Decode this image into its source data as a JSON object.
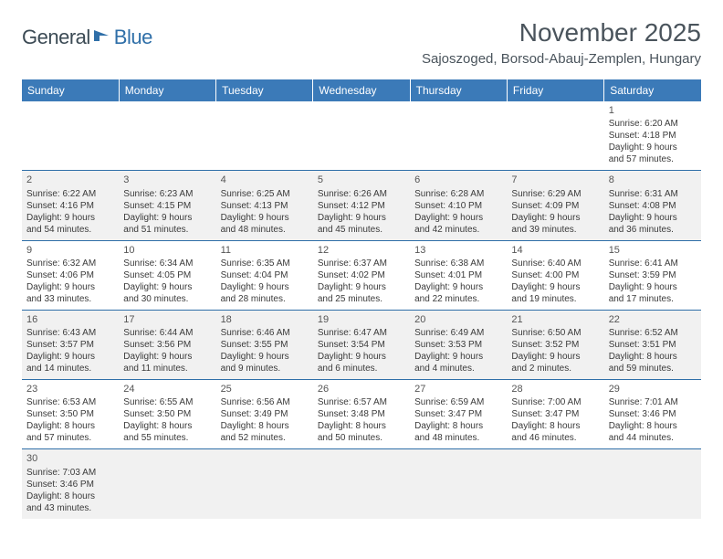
{
  "logo": {
    "text_dark": "General",
    "text_blue": "Blue",
    "accent_color": "#2f6fa8"
  },
  "header": {
    "title": "November 2025",
    "location": "Sajoszoged, Borsod-Abauj-Zemplen, Hungary"
  },
  "colors": {
    "header_bg": "#3b7ab8",
    "row_alt": "#f1f1f1",
    "row_border": "#2f6fa8",
    "text_muted": "#4a545c"
  },
  "weekdays": [
    "Sunday",
    "Monday",
    "Tuesday",
    "Wednesday",
    "Thursday",
    "Friday",
    "Saturday"
  ],
  "weeks": [
    [
      null,
      null,
      null,
      null,
      null,
      null,
      {
        "n": "1",
        "sr": "Sunrise: 6:20 AM",
        "ss": "Sunset: 4:18 PM",
        "d1": "Daylight: 9 hours",
        "d2": "and 57 minutes."
      }
    ],
    [
      {
        "n": "2",
        "sr": "Sunrise: 6:22 AM",
        "ss": "Sunset: 4:16 PM",
        "d1": "Daylight: 9 hours",
        "d2": "and 54 minutes."
      },
      {
        "n": "3",
        "sr": "Sunrise: 6:23 AM",
        "ss": "Sunset: 4:15 PM",
        "d1": "Daylight: 9 hours",
        "d2": "and 51 minutes."
      },
      {
        "n": "4",
        "sr": "Sunrise: 6:25 AM",
        "ss": "Sunset: 4:13 PM",
        "d1": "Daylight: 9 hours",
        "d2": "and 48 minutes."
      },
      {
        "n": "5",
        "sr": "Sunrise: 6:26 AM",
        "ss": "Sunset: 4:12 PM",
        "d1": "Daylight: 9 hours",
        "d2": "and 45 minutes."
      },
      {
        "n": "6",
        "sr": "Sunrise: 6:28 AM",
        "ss": "Sunset: 4:10 PM",
        "d1": "Daylight: 9 hours",
        "d2": "and 42 minutes."
      },
      {
        "n": "7",
        "sr": "Sunrise: 6:29 AM",
        "ss": "Sunset: 4:09 PM",
        "d1": "Daylight: 9 hours",
        "d2": "and 39 minutes."
      },
      {
        "n": "8",
        "sr": "Sunrise: 6:31 AM",
        "ss": "Sunset: 4:08 PM",
        "d1": "Daylight: 9 hours",
        "d2": "and 36 minutes."
      }
    ],
    [
      {
        "n": "9",
        "sr": "Sunrise: 6:32 AM",
        "ss": "Sunset: 4:06 PM",
        "d1": "Daylight: 9 hours",
        "d2": "and 33 minutes."
      },
      {
        "n": "10",
        "sr": "Sunrise: 6:34 AM",
        "ss": "Sunset: 4:05 PM",
        "d1": "Daylight: 9 hours",
        "d2": "and 30 minutes."
      },
      {
        "n": "11",
        "sr": "Sunrise: 6:35 AM",
        "ss": "Sunset: 4:04 PM",
        "d1": "Daylight: 9 hours",
        "d2": "and 28 minutes."
      },
      {
        "n": "12",
        "sr": "Sunrise: 6:37 AM",
        "ss": "Sunset: 4:02 PM",
        "d1": "Daylight: 9 hours",
        "d2": "and 25 minutes."
      },
      {
        "n": "13",
        "sr": "Sunrise: 6:38 AM",
        "ss": "Sunset: 4:01 PM",
        "d1": "Daylight: 9 hours",
        "d2": "and 22 minutes."
      },
      {
        "n": "14",
        "sr": "Sunrise: 6:40 AM",
        "ss": "Sunset: 4:00 PM",
        "d1": "Daylight: 9 hours",
        "d2": "and 19 minutes."
      },
      {
        "n": "15",
        "sr": "Sunrise: 6:41 AM",
        "ss": "Sunset: 3:59 PM",
        "d1": "Daylight: 9 hours",
        "d2": "and 17 minutes."
      }
    ],
    [
      {
        "n": "16",
        "sr": "Sunrise: 6:43 AM",
        "ss": "Sunset: 3:57 PM",
        "d1": "Daylight: 9 hours",
        "d2": "and 14 minutes."
      },
      {
        "n": "17",
        "sr": "Sunrise: 6:44 AM",
        "ss": "Sunset: 3:56 PM",
        "d1": "Daylight: 9 hours",
        "d2": "and 11 minutes."
      },
      {
        "n": "18",
        "sr": "Sunrise: 6:46 AM",
        "ss": "Sunset: 3:55 PM",
        "d1": "Daylight: 9 hours",
        "d2": "and 9 minutes."
      },
      {
        "n": "19",
        "sr": "Sunrise: 6:47 AM",
        "ss": "Sunset: 3:54 PM",
        "d1": "Daylight: 9 hours",
        "d2": "and 6 minutes."
      },
      {
        "n": "20",
        "sr": "Sunrise: 6:49 AM",
        "ss": "Sunset: 3:53 PM",
        "d1": "Daylight: 9 hours",
        "d2": "and 4 minutes."
      },
      {
        "n": "21",
        "sr": "Sunrise: 6:50 AM",
        "ss": "Sunset: 3:52 PM",
        "d1": "Daylight: 9 hours",
        "d2": "and 2 minutes."
      },
      {
        "n": "22",
        "sr": "Sunrise: 6:52 AM",
        "ss": "Sunset: 3:51 PM",
        "d1": "Daylight: 8 hours",
        "d2": "and 59 minutes."
      }
    ],
    [
      {
        "n": "23",
        "sr": "Sunrise: 6:53 AM",
        "ss": "Sunset: 3:50 PM",
        "d1": "Daylight: 8 hours",
        "d2": "and 57 minutes."
      },
      {
        "n": "24",
        "sr": "Sunrise: 6:55 AM",
        "ss": "Sunset: 3:50 PM",
        "d1": "Daylight: 8 hours",
        "d2": "and 55 minutes."
      },
      {
        "n": "25",
        "sr": "Sunrise: 6:56 AM",
        "ss": "Sunset: 3:49 PM",
        "d1": "Daylight: 8 hours",
        "d2": "and 52 minutes."
      },
      {
        "n": "26",
        "sr": "Sunrise: 6:57 AM",
        "ss": "Sunset: 3:48 PM",
        "d1": "Daylight: 8 hours",
        "d2": "and 50 minutes."
      },
      {
        "n": "27",
        "sr": "Sunrise: 6:59 AM",
        "ss": "Sunset: 3:47 PM",
        "d1": "Daylight: 8 hours",
        "d2": "and 48 minutes."
      },
      {
        "n": "28",
        "sr": "Sunrise: 7:00 AM",
        "ss": "Sunset: 3:47 PM",
        "d1": "Daylight: 8 hours",
        "d2": "and 46 minutes."
      },
      {
        "n": "29",
        "sr": "Sunrise: 7:01 AM",
        "ss": "Sunset: 3:46 PM",
        "d1": "Daylight: 8 hours",
        "d2": "and 44 minutes."
      }
    ],
    [
      {
        "n": "30",
        "sr": "Sunrise: 7:03 AM",
        "ss": "Sunset: 3:46 PM",
        "d1": "Daylight: 8 hours",
        "d2": "and 43 minutes."
      },
      null,
      null,
      null,
      null,
      null,
      null
    ]
  ]
}
